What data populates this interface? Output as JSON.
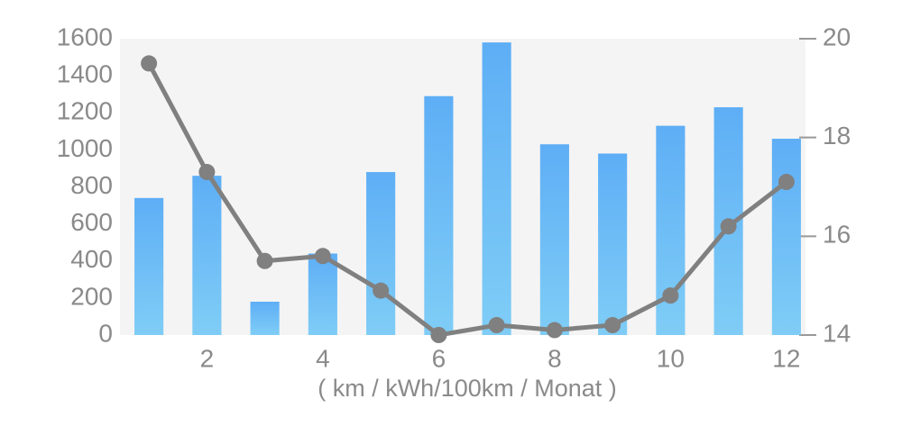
{
  "chart_data": {
    "type": "bar_line",
    "x_label": "( km / kWh/100km / Monat )",
    "x": [
      1,
      2,
      3,
      4,
      5,
      6,
      7,
      8,
      9,
      10,
      11,
      12
    ],
    "xlim": [
      0.5,
      12.5
    ],
    "xticks": [
      2,
      4,
      6,
      8,
      10,
      12
    ],
    "ylim": [
      0,
      1600
    ],
    "yticks": [
      0,
      200,
      400,
      600,
      800,
      1000,
      1200,
      1400,
      1600
    ],
    "y2lim": [
      14,
      20
    ],
    "y2ticks": [
      14,
      16,
      18,
      20
    ],
    "series": [
      {
        "type": "bar",
        "color": "#5eaef6",
        "values": [
          740,
          860,
          180,
          440,
          880,
          1290,
          1580,
          1030,
          980,
          1130,
          1230,
          1060
        ]
      },
      {
        "type": "line",
        "axis": "y2",
        "color": "#808080",
        "values": [
          19.5,
          17.3,
          15.5,
          15.6,
          14.9,
          14.0,
          14.2,
          14.1,
          14.2,
          14.8,
          16.2,
          17.1
        ]
      }
    ]
  }
}
